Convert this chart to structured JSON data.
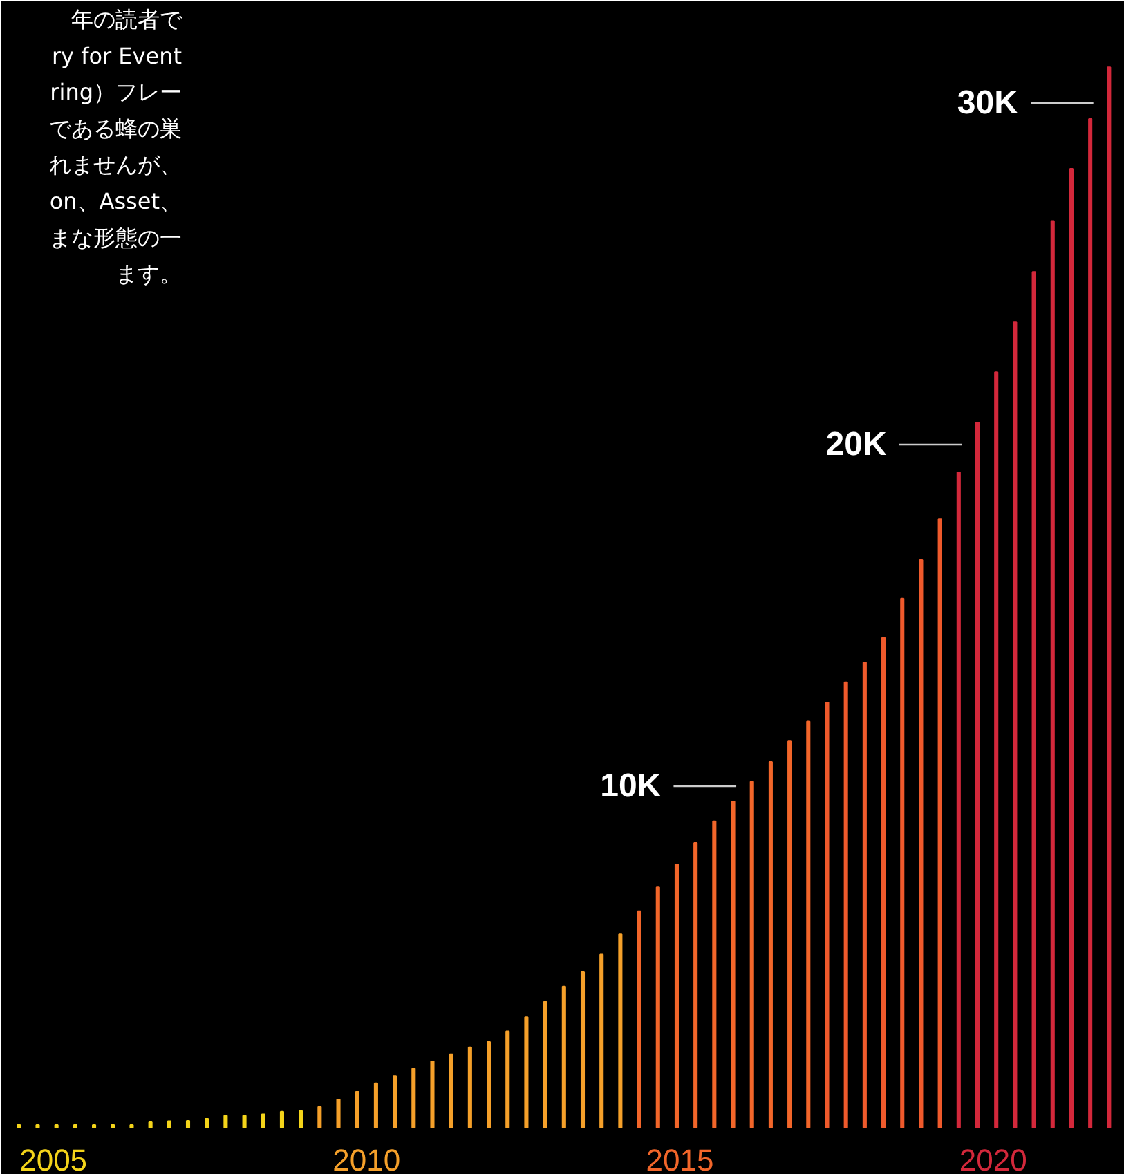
{
  "chart_data": {
    "type": "bar",
    "annotations": [
      "年の読者で",
      "ry for Event",
      "ring）フレー",
      "である蜂の巣",
      "れませんが、",
      "on、Asset、",
      "まな形態の一",
      "ます。"
    ],
    "x": [
      2004.45,
      2004.75,
      2005.05,
      2005.35,
      2005.65,
      2005.95,
      2006.25,
      2006.55,
      2006.85,
      2007.15,
      2007.45,
      2007.75,
      2008.05,
      2008.35,
      2008.65,
      2008.95,
      2009.25,
      2009.55,
      2009.85,
      2010.15,
      2010.45,
      2010.75,
      2011.05,
      2011.35,
      2011.65,
      2011.95,
      2012.25,
      2012.55,
      2012.85,
      2013.15,
      2013.45,
      2013.75,
      2014.05,
      2014.35,
      2014.65,
      2014.95,
      2015.25,
      2015.55,
      2015.85,
      2016.15,
      2016.45,
      2016.75,
      2017.05,
      2017.35,
      2017.65,
      2017.95,
      2018.25,
      2018.55,
      2018.85,
      2019.15,
      2019.45,
      2019.75,
      2020.05,
      2020.35,
      2020.65,
      2020.95,
      2021.25,
      2021.55,
      2021.85
    ],
    "values": [
      80,
      80,
      80,
      80,
      80,
      80,
      80,
      160,
      190,
      200,
      260,
      350,
      350,
      390,
      470,
      490,
      610,
      820,
      1050,
      1300,
      1510,
      1730,
      1940,
      2150,
      2350,
      2510,
      2820,
      3230,
      3680,
      4130,
      4550,
      5070,
      5660,
      6340,
      7040,
      7710,
      8340,
      8970,
      9550,
      10130,
      10710,
      11310,
      11890,
      12450,
      13040,
      13620,
      14340,
      15490,
      16620,
      17830,
      19190,
      20650,
      22120,
      23600,
      25060,
      26550,
      28080,
      29540,
      31050
    ],
    "colors": [
      "#f4d41a",
      "#f4d41a",
      "#f4d41a",
      "#f4d41a",
      "#f4d41a",
      "#f4d41a",
      "#f4d41a",
      "#f4d41a",
      "#f4d41a",
      "#f4d41a",
      "#f4d41a",
      "#f4d41a",
      "#f4d41a",
      "#f4d41a",
      "#f4d41a",
      "#f4d41a",
      "#f5a02a",
      "#f5a02a",
      "#f5a02a",
      "#f5a02a",
      "#f5a02a",
      "#f5a02a",
      "#f5a02a",
      "#f5a02a",
      "#f5a02a",
      "#f5a02a",
      "#f5a02a",
      "#f5a02a",
      "#f5a02a",
      "#f5a02a",
      "#f5a02a",
      "#f5a02a",
      "#f5a02a",
      "#f2662a",
      "#f2662a",
      "#f2662a",
      "#f2662a",
      "#f2662a",
      "#f2662a",
      "#f2662a",
      "#f2662a",
      "#f2662a",
      "#f2662a",
      "#ef5a2c",
      "#ef5a2c",
      "#ef5a2c",
      "#ef5a2c",
      "#ef5a2c",
      "#ef5a2c",
      "#ef5a2c",
      "#d3283b",
      "#d3283b",
      "#d3283b",
      "#d3283b",
      "#d3283b",
      "#d3283b",
      "#d3283b",
      "#d3283b",
      "#d3283b"
    ],
    "xlim": [
      2004.16,
      2022.1
    ],
    "xticks": [
      2005,
      2010,
      2015,
      2020
    ],
    "ylim": [
      -1380,
      33000
    ],
    "ref_lines": [
      {
        "axis": "y",
        "value": 10000,
        "label": "10K",
        "color": "#cccccc"
      },
      {
        "axis": "y",
        "value": 20000,
        "label": "20K",
        "color": "#cccccc"
      },
      {
        "axis": "y",
        "value": 30000,
        "label": "30K",
        "color": "#cccccc"
      }
    ],
    "grid": false
  }
}
